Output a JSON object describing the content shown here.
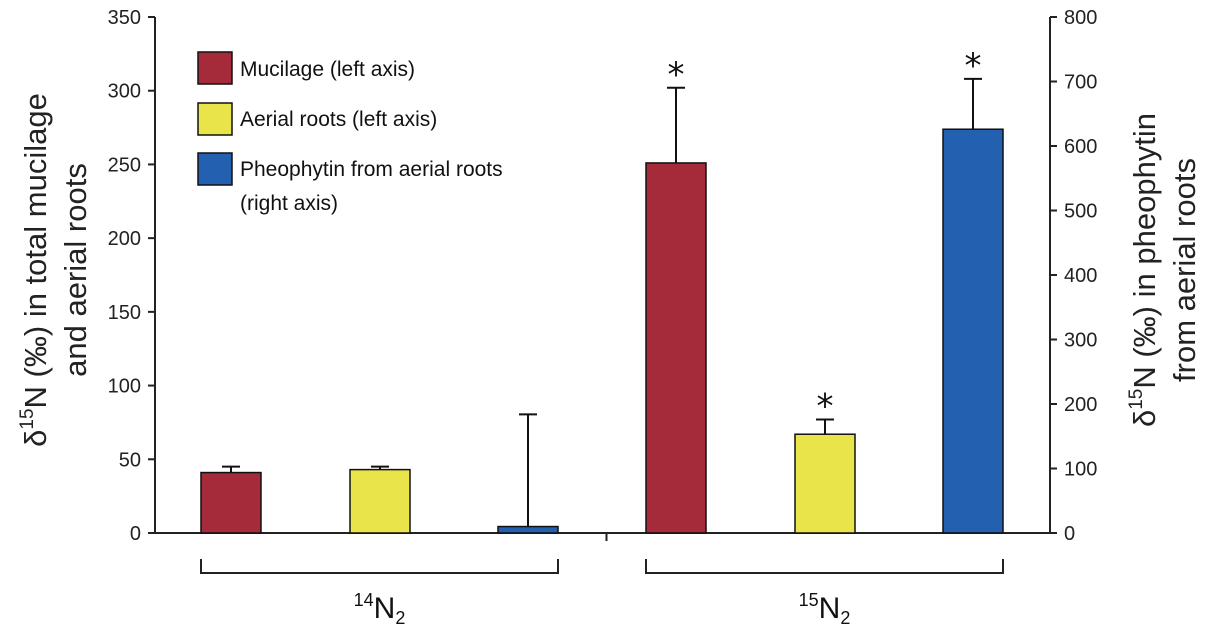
{
  "chart_data": {
    "type": "bar",
    "groups": [
      {
        "sub": "14",
        "base": "N",
        "subscript": "2"
      },
      {
        "sub": "15",
        "base": "N",
        "subscript": "2"
      }
    ],
    "series": [
      {
        "name": "Mucilage (left axis)",
        "axis": "left",
        "color": "#a52a3a",
        "values": [
          41,
          251
        ],
        "errors": [
          4,
          51
        ],
        "significant": [
          false,
          true
        ]
      },
      {
        "name": "Aerial roots (left axis)",
        "axis": "left",
        "color": "#e8e44a",
        "values": [
          43,
          67
        ],
        "errors": [
          2,
          10
        ],
        "significant": [
          false,
          true
        ]
      },
      {
        "name": "Pheophytin from aerial roots (right axis)",
        "name_lines": [
          "Pheophytin from aerial roots",
          "(right axis)"
        ],
        "axis": "right",
        "color": "#2360b0",
        "values": [
          10,
          626
        ],
        "errors": [
          174,
          78
        ],
        "significant": [
          false,
          true
        ]
      }
    ],
    "left_axis": {
      "min": 0,
      "max": 350,
      "ticks": [
        "0",
        "50",
        "100",
        "150",
        "200",
        "250",
        "300",
        "350"
      ],
      "label_lines": [
        "δ15N (‰) in total mucilage",
        "and aerial roots"
      ]
    },
    "right_axis": {
      "min": 0,
      "max": 800,
      "ticks": [
        "0",
        "100",
        "200",
        "300",
        "400",
        "500",
        "600",
        "700",
        "800"
      ],
      "label_lines": [
        "δ15N (‰) in pheophytin",
        "from aerial roots"
      ]
    },
    "significance_marker": "*"
  }
}
